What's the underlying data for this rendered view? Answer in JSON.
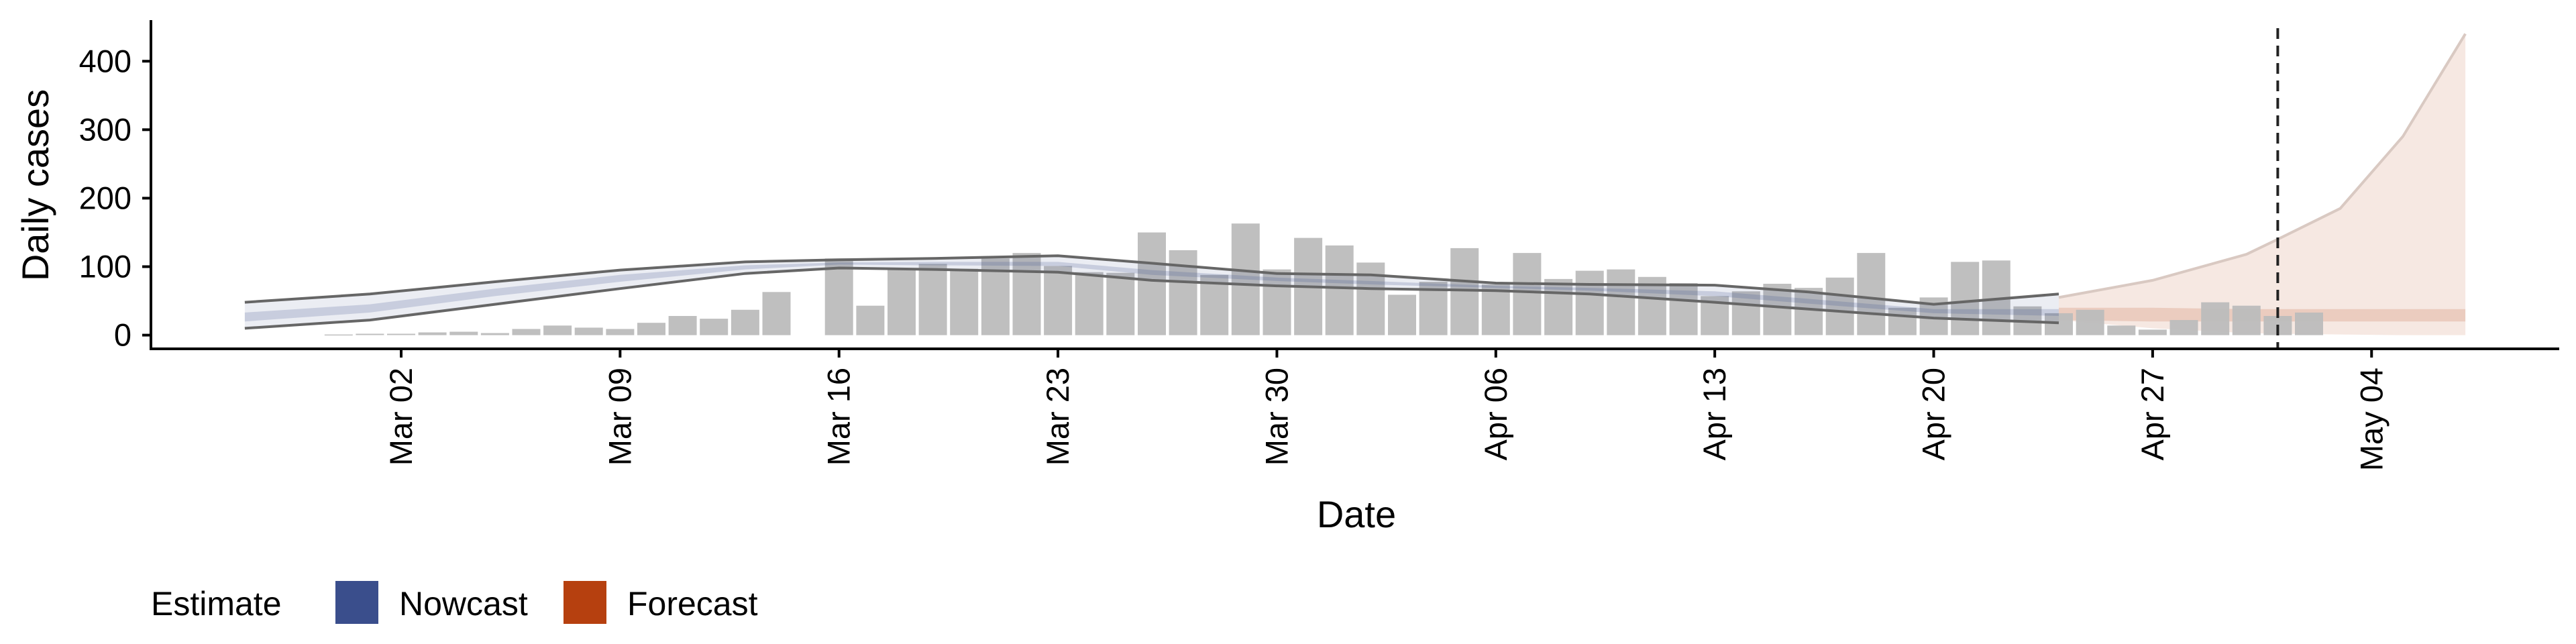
{
  "chart_data": {
    "type": "bar",
    "title": "",
    "xlabel": "Date",
    "ylabel": "Daily cases",
    "ylim": [
      -20,
      460
    ],
    "xlim": [
      "2020-02-23",
      "2020-05-10"
    ],
    "x_ticks": [
      "Mar 02",
      "Mar 09",
      "Mar 16",
      "Mar 23",
      "Mar 30",
      "Apr 06",
      "Apr 13",
      "Apr 20",
      "Apr 27",
      "May 04"
    ],
    "x_tick_dates": [
      "2020-03-02",
      "2020-03-09",
      "2020-03-16",
      "2020-03-23",
      "2020-03-30",
      "2020-04-06",
      "2020-04-13",
      "2020-04-20",
      "2020-04-27",
      "2020-05-04"
    ],
    "y_ticks": [
      0,
      100,
      200,
      300,
      400
    ],
    "grid": false,
    "legend": {
      "title": "Estimate",
      "position": "bottom-left",
      "entries": [
        {
          "label": "Nowcast",
          "color": "#3a4e8c"
        },
        {
          "label": "Forecast",
          "color": "#b6400f"
        }
      ]
    },
    "colors": {
      "bars": "#bcbcbc",
      "nowcast_fill": "#3a4e8c",
      "forecast_fill": "#b6400f",
      "band_line": "#666666",
      "vline": "#222222"
    },
    "vline_date": "2020-05-01",
    "cases": {
      "start_date": "2020-02-29",
      "values": [
        1,
        2,
        2,
        4,
        5,
        3,
        9,
        14,
        11,
        9,
        18,
        28,
        24,
        37,
        63,
        0,
        112,
        43,
        96,
        104,
        97,
        112,
        120,
        101,
        92,
        91,
        150,
        124,
        88,
        163,
        96,
        142,
        131,
        106,
        59,
        78,
        127,
        74,
        120,
        82,
        94,
        96,
        85,
        76,
        57,
        64,
        75,
        69,
        84,
        120,
        40,
        55,
        107,
        109,
        42,
        32,
        37,
        14,
        8,
        22,
        48,
        43,
        28,
        33
      ]
    },
    "nowcast": {
      "dates": [
        "2020-02-26",
        "2020-03-01",
        "2020-03-05",
        "2020-03-09",
        "2020-03-13",
        "2020-03-16",
        "2020-03-19",
        "2020-03-23",
        "2020-03-26",
        "2020-03-30",
        "2020-04-02",
        "2020-04-06",
        "2020-04-09",
        "2020-04-13",
        "2020-04-16",
        "2020-04-20",
        "2020-04-24"
      ],
      "outer_upper": [
        48,
        60,
        78,
        95,
        107,
        110,
        112,
        116,
        105,
        90,
        88,
        76,
        74,
        73,
        63,
        45,
        60
      ],
      "outer_lower": [
        10,
        22,
        45,
        68,
        90,
        98,
        96,
        92,
        80,
        72,
        68,
        65,
        60,
        48,
        38,
        25,
        18
      ],
      "inner_upper": [
        33,
        45,
        68,
        88,
        102,
        106,
        107,
        107,
        95,
        84,
        79,
        72,
        69,
        64,
        53,
        38,
        38
      ],
      "inner_lower": [
        20,
        33,
        57,
        78,
        96,
        103,
        102,
        101,
        88,
        79,
        74,
        69,
        65,
        57,
        46,
        32,
        28
      ]
    },
    "forecast": {
      "dates": [
        "2020-04-24",
        "2020-04-27",
        "2020-04-30",
        "2020-05-01",
        "2020-05-03",
        "2020-05-05",
        "2020-05-07"
      ],
      "outer_upper": [
        55,
        80,
        118,
        140,
        185,
        290,
        440
      ],
      "outer_lower": [
        22,
        10,
        3,
        2,
        1,
        0,
        0
      ],
      "inner_upper": [
        40,
        40,
        38,
        38,
        38,
        38,
        38
      ],
      "inner_lower": [
        22,
        20,
        20,
        20,
        20,
        20,
        20
      ]
    }
  }
}
